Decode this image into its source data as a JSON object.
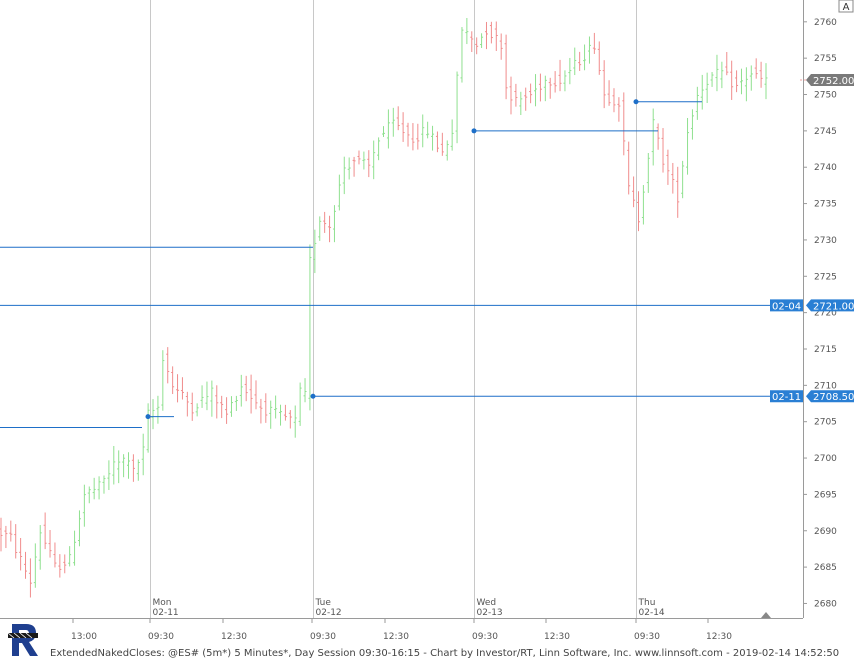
{
  "chart_data": {
    "type": "bar",
    "title": "",
    "footer": "ExtendedNakedCloses: @ES# (5m*) 5 Minutes*, Day Session 09:30-16:15 - Chart by Investor/RT, Linn Software, Inc. www.linnsoft.com - 2019-02-14 14:52:50",
    "corner_label": "A",
    "ylim": [
      2678,
      2763
    ],
    "y_ticks": [
      2680,
      2685,
      2690,
      2695,
      2700,
      2705,
      2710,
      2715,
      2720,
      2725,
      2730,
      2735,
      2740,
      2745,
      2750,
      2755,
      2760
    ],
    "x_ticks": [
      "13:00",
      "09:30",
      "12:30",
      "09:30",
      "12:30",
      "09:30",
      "12:30",
      "09:30",
      "12:30"
    ],
    "days": [
      {
        "dow": "Mon",
        "date": "02-11"
      },
      {
        "dow": "Tue",
        "date": "02-12"
      },
      {
        "dow": "Wed",
        "date": "02-13"
      },
      {
        "dow": "Thu",
        "date": "02-14"
      }
    ],
    "last_price": {
      "value": 2752.0,
      "label": "2752.00"
    },
    "naked_closes": [
      {
        "price": 2721.0,
        "label": "2721.00",
        "tag": "02-04"
      },
      {
        "price": 2708.5,
        "label": "2708.50",
        "tag": "02-11"
      }
    ],
    "closes_lines": [
      2704.2,
      2705.7,
      2729.0,
      2745.0,
      2749.0
    ],
    "price_path": [
      [
        0,
        2690
      ],
      [
        3,
        2689
      ],
      [
        7,
        2683
      ],
      [
        9,
        2690
      ],
      [
        12,
        2685
      ],
      [
        15,
        2686
      ],
      [
        18,
        2695
      ],
      [
        21,
        2696
      ],
      [
        24,
        2699
      ],
      [
        27,
        2700
      ],
      [
        28,
        2698
      ],
      [
        30,
        2701
      ],
      [
        31,
        2706
      ],
      [
        33,
        2707
      ],
      [
        34,
        2714
      ],
      [
        36,
        2710
      ],
      [
        40,
        2707
      ],
      [
        44,
        2709
      ],
      [
        47,
        2706
      ],
      [
        50,
        2710
      ],
      [
        54,
        2707
      ],
      [
        57,
        2706
      ],
      [
        61,
        2705
      ],
      [
        62,
        2709
      ],
      [
        63,
        2708.5
      ],
      [
        64,
        2727
      ],
      [
        66,
        2733
      ],
      [
        68,
        2732
      ],
      [
        71,
        2740
      ],
      [
        73,
        2741
      ],
      [
        76,
        2740
      ],
      [
        78,
        2744
      ],
      [
        81,
        2746
      ],
      [
        85,
        2744
      ],
      [
        88,
        2745
      ],
      [
        90,
        2743
      ],
      [
        91,
        2742
      ],
      [
        93,
        2745
      ],
      [
        95,
        2759
      ],
      [
        98,
        2757
      ],
      [
        100,
        2759
      ],
      [
        103,
        2757
      ],
      [
        104,
        2751
      ],
      [
        106,
        2749
      ],
      [
        109,
        2750
      ],
      [
        112,
        2752
      ],
      [
        115,
        2752
      ],
      [
        118,
        2754
      ],
      [
        122,
        2757
      ],
      [
        124,
        2750
      ],
      [
        127,
        2749
      ],
      [
        129,
        2737
      ],
      [
        131,
        2733
      ],
      [
        134,
        2746
      ],
      [
        136,
        2741
      ],
      [
        139,
        2736
      ],
      [
        141,
        2745
      ],
      [
        143,
        2750
      ],
      [
        145,
        2752
      ],
      [
        148,
        2753
      ],
      [
        151,
        2751
      ],
      [
        154,
        2753
      ],
      [
        156,
        2752
      ]
    ],
    "bar_count": 157,
    "grid": true,
    "colors": {
      "up": "#8fe08f",
      "down": "#f08c8c",
      "naked": "#1e6fc8",
      "tag": "#2a7fd4",
      "last": "#7a7a7a"
    }
  }
}
